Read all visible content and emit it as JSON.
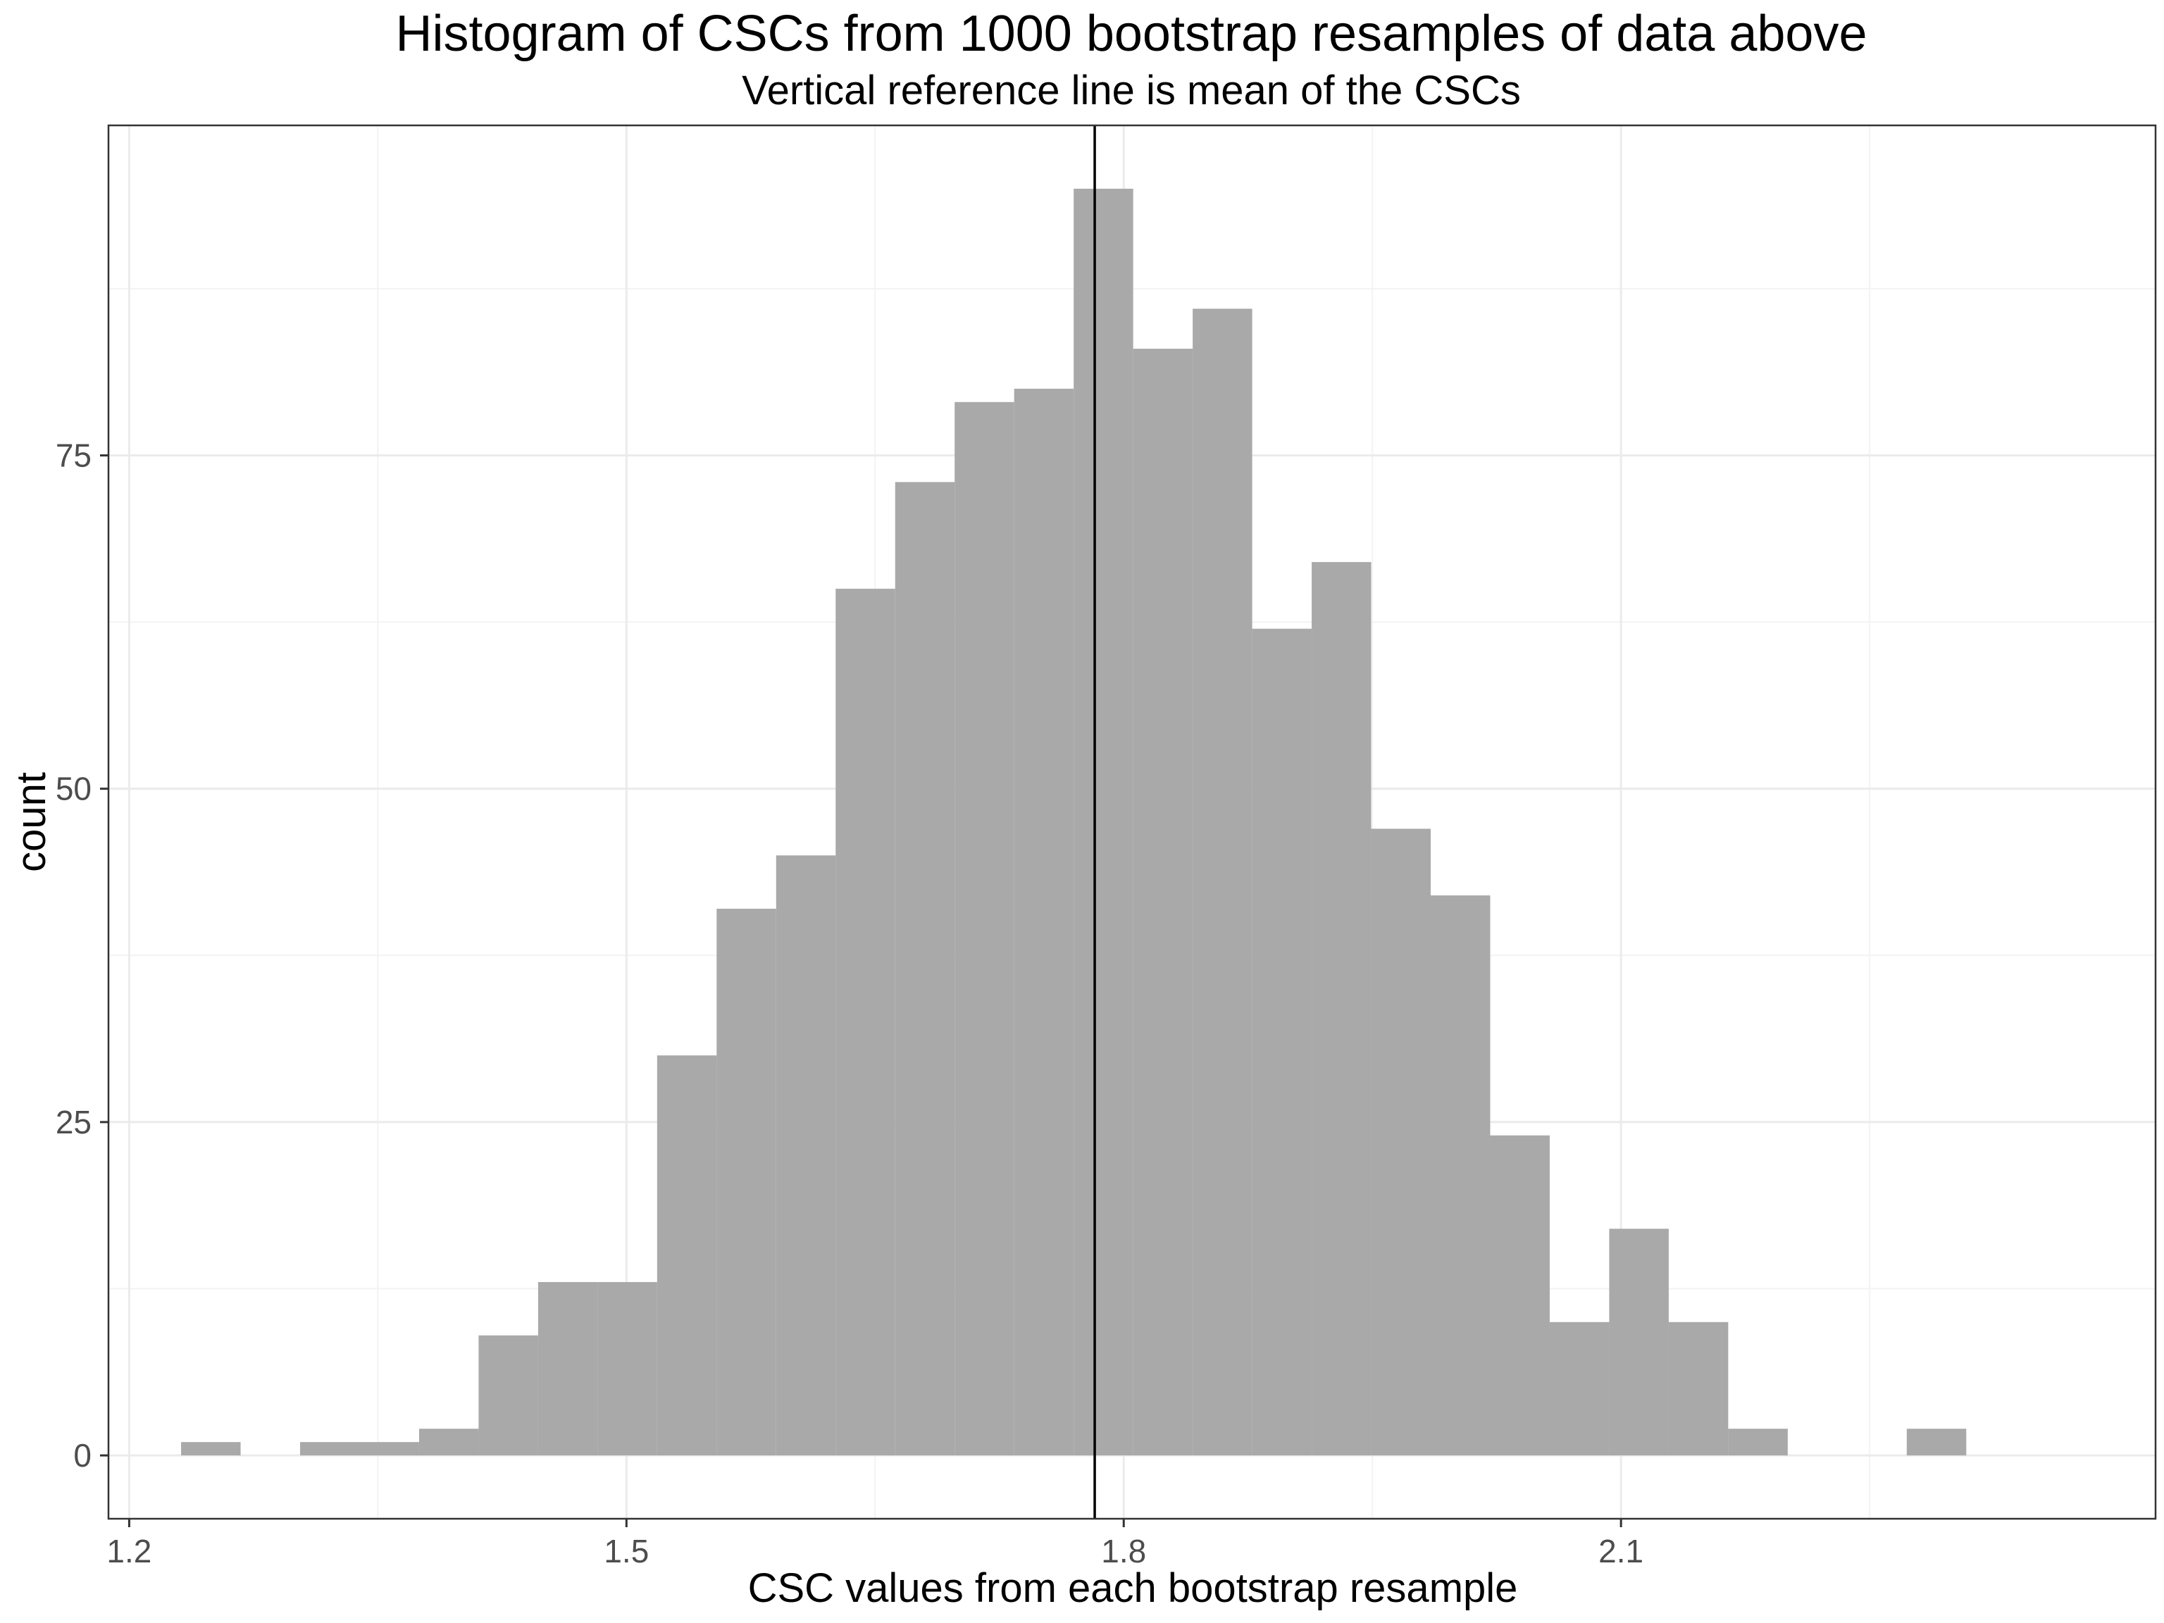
{
  "chart_data": {
    "type": "histogram",
    "title": "Histogram of CSCs from 1000 bootstrap resamples of data above",
    "subtitle": "Vertical reference line is mean of the CSCs",
    "xlabel": "CSC values from each bootstrap resample",
    "ylabel": "count",
    "xlim": [
      1.1875,
      2.4225
    ],
    "ylim": [
      -4.75,
      99.75
    ],
    "x_ticks": [
      {
        "value": 1.2,
        "label": "1.2"
      },
      {
        "value": 1.5,
        "label": "1.5"
      },
      {
        "value": 1.8,
        "label": "1.8"
      },
      {
        "value": 2.1,
        "label": "2.1"
      }
    ],
    "y_ticks": [
      {
        "value": 0,
        "label": "0"
      },
      {
        "value": 25,
        "label": "25"
      },
      {
        "value": 50,
        "label": "50"
      },
      {
        "value": 75,
        "label": "75"
      }
    ],
    "x_minor": [
      1.35,
      1.65,
      1.95,
      2.25
    ],
    "y_minor": [
      12.5,
      37.5,
      62.5,
      87.5
    ],
    "grid": true,
    "bins": [
      {
        "x0": 1.2313,
        "x1": 1.2672,
        "count": 1
      },
      {
        "x0": 1.2672,
        "x1": 1.3031,
        "count": 0
      },
      {
        "x0": 1.3031,
        "x1": 1.339,
        "count": 1
      },
      {
        "x0": 1.339,
        "x1": 1.3749,
        "count": 1
      },
      {
        "x0": 1.3749,
        "x1": 1.4108,
        "count": 2
      },
      {
        "x0": 1.4108,
        "x1": 1.4467,
        "count": 9
      },
      {
        "x0": 1.4467,
        "x1": 1.4826,
        "count": 13
      },
      {
        "x0": 1.4826,
        "x1": 1.5185,
        "count": 13
      },
      {
        "x0": 1.5185,
        "x1": 1.5544,
        "count": 30
      },
      {
        "x0": 1.5544,
        "x1": 1.5903,
        "count": 41
      },
      {
        "x0": 1.5903,
        "x1": 1.6262,
        "count": 45
      },
      {
        "x0": 1.6262,
        "x1": 1.6621,
        "count": 65
      },
      {
        "x0": 1.6621,
        "x1": 1.698,
        "count": 73
      },
      {
        "x0": 1.698,
        "x1": 1.7339,
        "count": 79
      },
      {
        "x0": 1.7339,
        "x1": 1.7698,
        "count": 80
      },
      {
        "x0": 1.7698,
        "x1": 1.8057,
        "count": 95
      },
      {
        "x0": 1.8057,
        "x1": 1.8416,
        "count": 83
      },
      {
        "x0": 1.8416,
        "x1": 1.8775,
        "count": 86
      },
      {
        "x0": 1.8775,
        "x1": 1.9134,
        "count": 62
      },
      {
        "x0": 1.9134,
        "x1": 1.9493,
        "count": 67
      },
      {
        "x0": 1.9493,
        "x1": 1.9852,
        "count": 47
      },
      {
        "x0": 1.9852,
        "x1": 2.0211,
        "count": 42
      },
      {
        "x0": 2.0211,
        "x1": 2.057,
        "count": 24
      },
      {
        "x0": 2.057,
        "x1": 2.0929,
        "count": 10
      },
      {
        "x0": 2.0929,
        "x1": 2.1288,
        "count": 17
      },
      {
        "x0": 2.1288,
        "x1": 2.1647,
        "count": 10
      },
      {
        "x0": 2.1647,
        "x1": 2.2006,
        "count": 2
      },
      {
        "x0": 2.2006,
        "x1": 2.2365,
        "count": 0
      },
      {
        "x0": 2.2365,
        "x1": 2.2724,
        "count": 0
      },
      {
        "x0": 2.2724,
        "x1": 2.3083,
        "count": 2
      }
    ],
    "mean_line": {
      "x": 1.7825
    },
    "colors": {
      "bar": "#a9a9a9",
      "mean_line": "#000000",
      "panel_border": "#333333"
    }
  }
}
